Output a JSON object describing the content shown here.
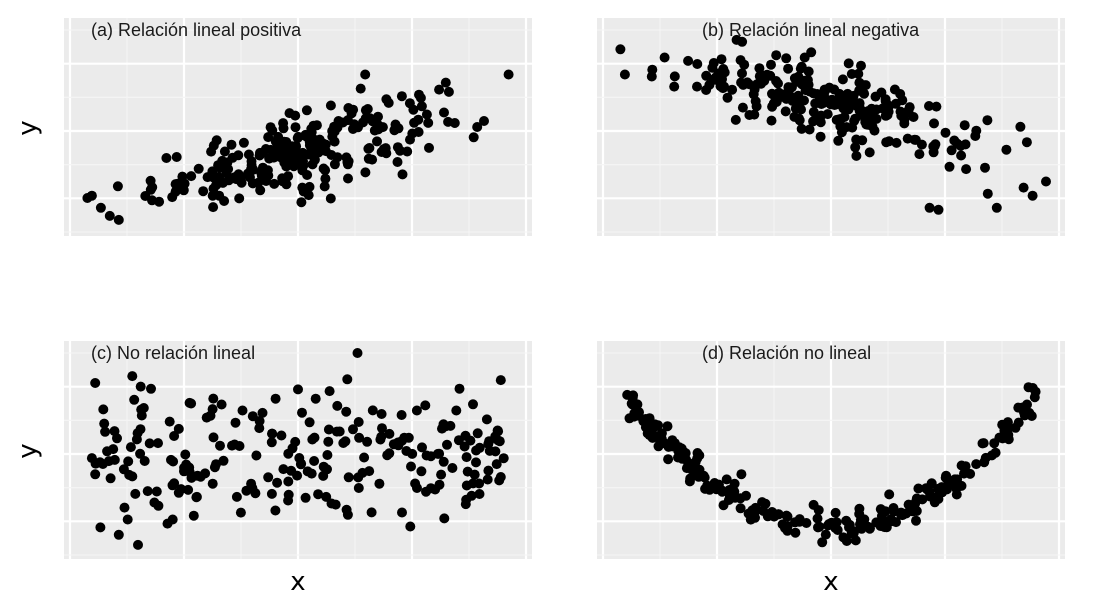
{
  "figure": {
    "xlabel": "x",
    "ylabel": "y",
    "point_color": "#000000",
    "panel_background": "#ebebeb",
    "grid_color": "#ffffff"
  },
  "chart_data": [
    {
      "type": "scatter",
      "title": "(a) Relación lineal positiva",
      "xlabel": "x",
      "ylabel": "y",
      "xlim": [
        0,
        10
      ],
      "ylim": [
        0,
        10
      ],
      "grid": true,
      "ticks_shown": false,
      "pattern": {
        "kind": "linear",
        "slope": 0.55,
        "intercept": 1.0,
        "noise": 1.1,
        "n": 240,
        "x_spread": "centered"
      },
      "outliers": [
        {
          "x": 0.4,
          "y": 1.6
        },
        {
          "x": 0.6,
          "y": 1.0
        },
        {
          "x": 0.8,
          "y": 0.6
        },
        {
          "x": 1.0,
          "y": 0.4
        },
        {
          "x": 1.9,
          "y": 1.3
        },
        {
          "x": 6.4,
          "y": 6.9
        },
        {
          "x": 6.5,
          "y": 7.6
        },
        {
          "x": 7.7,
          "y": 6.6
        },
        {
          "x": 8.3,
          "y": 7.2
        },
        {
          "x": 8.5,
          "y": 5.2
        },
        {
          "x": 9.0,
          "y": 5.0
        },
        {
          "x": 9.7,
          "y": 7.6
        }
      ]
    },
    {
      "type": "scatter",
      "title": "(b) Relación lineal negativa",
      "xlabel": "x",
      "ylabel": "y",
      "xlim": [
        0,
        10
      ],
      "ylim": [
        0,
        10
      ],
      "grid": true,
      "ticks_shown": false,
      "pattern": {
        "kind": "linear",
        "slope": -0.5,
        "intercept": 8.7,
        "noise": 1.1,
        "n": 240,
        "x_spread": "centered"
      },
      "outliers": [
        {
          "x": 0.4,
          "y": 7.6
        },
        {
          "x": 1.0,
          "y": 7.5
        },
        {
          "x": 1.5,
          "y": 7.0
        },
        {
          "x": 4.0,
          "y": 8.4
        },
        {
          "x": 7.2,
          "y": 1.0
        },
        {
          "x": 7.4,
          "y": 0.9
        },
        {
          "x": 8.5,
          "y": 1.7
        },
        {
          "x": 8.7,
          "y": 1.0
        },
        {
          "x": 9.3,
          "y": 2.0
        },
        {
          "x": 9.5,
          "y": 1.6
        },
        {
          "x": 9.8,
          "y": 2.3
        }
      ]
    },
    {
      "type": "scatter",
      "title": "(c) No relación lineal",
      "xlabel": "x",
      "ylabel": "y",
      "xlim": [
        0,
        10
      ],
      "ylim": [
        0,
        10
      ],
      "grid": true,
      "ticks_shown": false,
      "pattern": {
        "kind": "none",
        "center": 4.6,
        "noise": 1.7,
        "n": 240,
        "x_spread": "uniform"
      },
      "outliers": [
        {
          "x": 0.4,
          "y": 4.6
        },
        {
          "x": 1.0,
          "y": 0.8
        },
        {
          "x": 1.5,
          "y": 7.0
        },
        {
          "x": 6.1,
          "y": 8.5
        },
        {
          "x": 5.0,
          "y": 8.0
        }
      ]
    },
    {
      "type": "scatter",
      "title": "(d) Relación no lineal",
      "xlabel": "x",
      "ylabel": "y",
      "xlim": [
        0,
        10
      ],
      "ylim": [
        0,
        10
      ],
      "grid": true,
      "ticks_shown": false,
      "pattern": {
        "kind": "quadratic",
        "vertex_x": 5.0,
        "vertex_y": 1.2,
        "a": 0.31,
        "noise": 0.35,
        "n": 240,
        "x_spread": "uniform"
      },
      "outliers": [
        {
          "x": 3.0,
          "y": 3.8
        },
        {
          "x": 6.3,
          "y": 2.8
        }
      ]
    }
  ]
}
